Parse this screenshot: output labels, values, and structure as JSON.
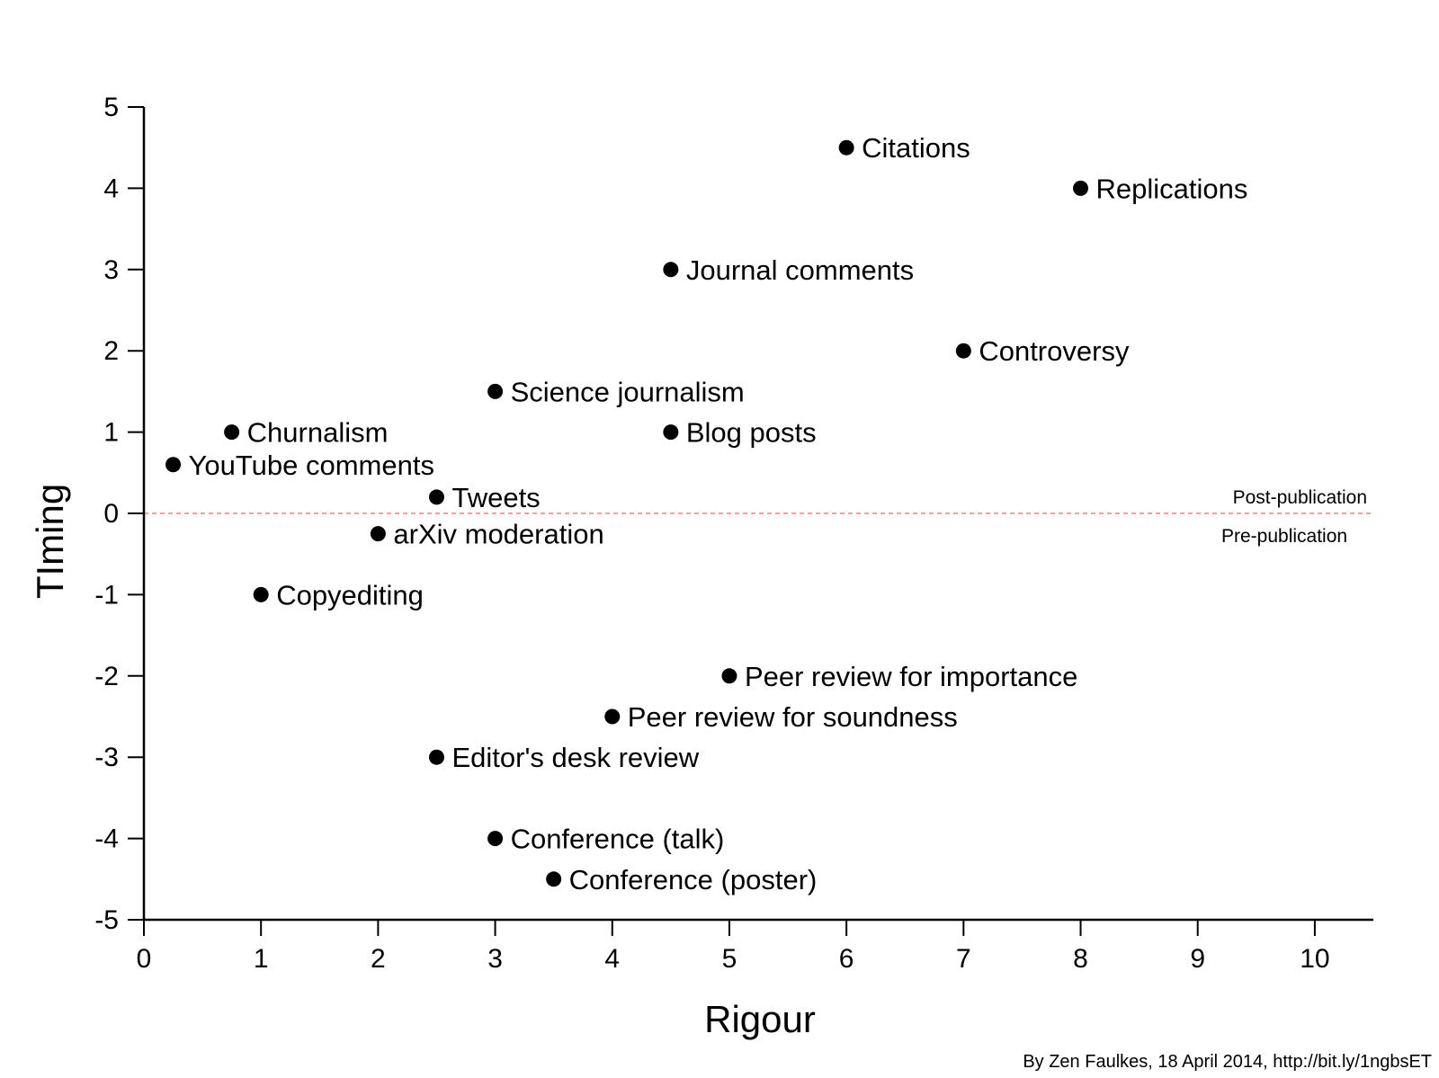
{
  "chart_data": {
    "type": "scatter",
    "xlabel": "Rigour",
    "ylabel": "TIming",
    "xlim": [
      0,
      10.5
    ],
    "ylim": [
      -5,
      5
    ],
    "xticks": [
      0,
      1,
      2,
      3,
      4,
      5,
      6,
      7,
      8,
      9,
      10
    ],
    "yticks": [
      5,
      4,
      3,
      2,
      1,
      0,
      -1,
      -2,
      -3,
      -4,
      -5
    ],
    "grid": false,
    "points": [
      {
        "label": "Citations",
        "x": 6,
        "y": 4.5
      },
      {
        "label": "Replications",
        "x": 8,
        "y": 4
      },
      {
        "label": "Journal comments",
        "x": 4.5,
        "y": 3
      },
      {
        "label": "Controversy",
        "x": 7,
        "y": 2
      },
      {
        "label": "Science journalism",
        "x": 3,
        "y": 1.5
      },
      {
        "label": "Churnalism",
        "x": 0.75,
        "y": 1
      },
      {
        "label": "Blog posts",
        "x": 4.5,
        "y": 1
      },
      {
        "label": "YouTube comments",
        "x": 0.25,
        "y": 0.6
      },
      {
        "label": "Tweets",
        "x": 2.5,
        "y": 0.2
      },
      {
        "label": "arXiv moderation",
        "x": 2,
        "y": -0.25
      },
      {
        "label": "Copyediting",
        "x": 1,
        "y": -1
      },
      {
        "label": "Peer review for importance",
        "x": 5,
        "y": -2
      },
      {
        "label": "Peer review for soundness",
        "x": 4,
        "y": -2.5
      },
      {
        "label": "Editor's desk review",
        "x": 2.5,
        "y": -3
      },
      {
        "label": "Conference (talk)",
        "x": 3,
        "y": -4
      },
      {
        "label": "Conference (poster)",
        "x": 3.5,
        "y": -4.5
      }
    ],
    "reference_line": {
      "y": 0,
      "style": "dashed",
      "color": "#f08080",
      "label_above": "Post-publication",
      "label_below": "Pre-publication"
    }
  },
  "credit": "By Zen Faulkes, 18 April 2014, http://bit.ly/1ngbsET"
}
